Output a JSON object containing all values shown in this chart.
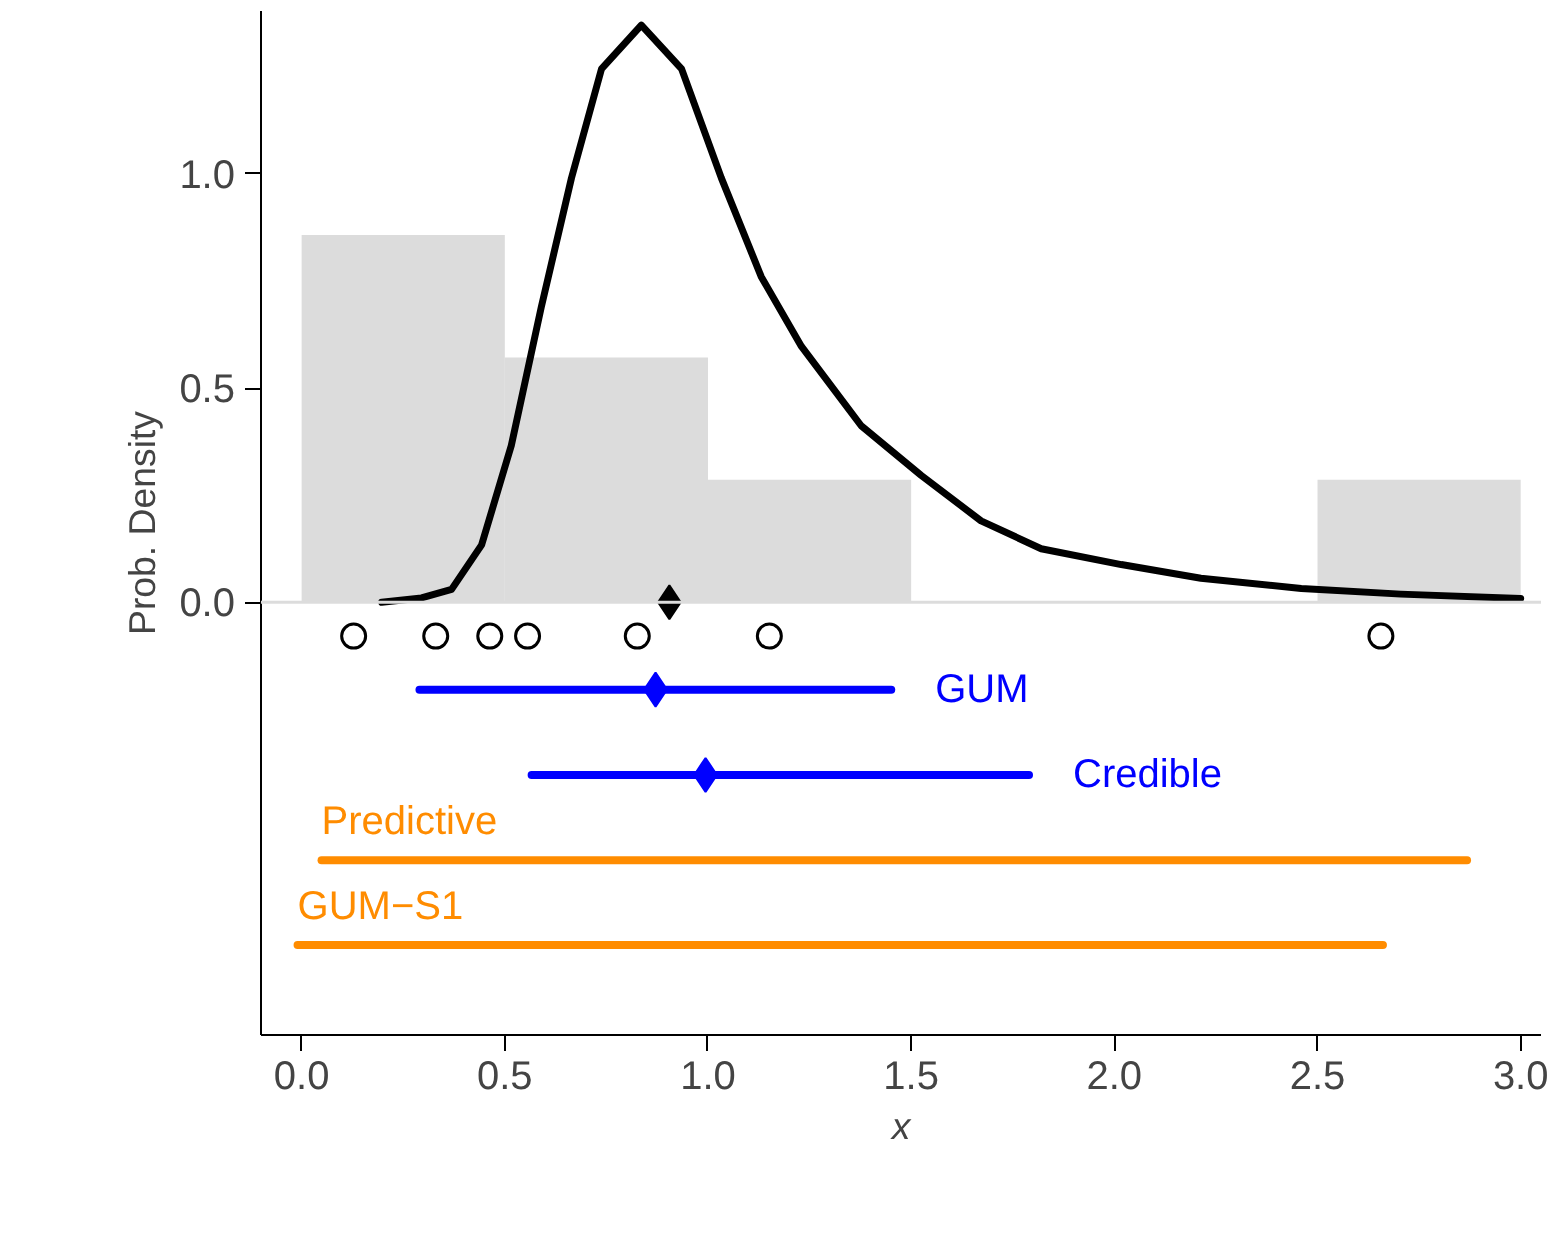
{
  "chart_data": {
    "type": "histogram",
    "xlabel": "x",
    "ylabel": "Prob. Density",
    "bins": [
      0,
      0.5,
      1.0,
      1.5,
      2.0,
      2.5,
      3.0
    ],
    "values": [
      0.857,
      0.571,
      0.286,
      0,
      0,
      0.286
    ],
    "color": "#dcdcdc",
    "xlim": [
      -0.1,
      3.05
    ],
    "ylim": [
      -1.01,
      1.38
    ],
    "xticks": [
      {
        "value": 0,
        "label": "0.0"
      },
      0.5,
      {
        "value": 1,
        "label": "1.0"
      },
      1.5,
      {
        "value": 2,
        "label": "2.0"
      },
      2.5,
      {
        "value": 3,
        "label": "3.0"
      }
    ],
    "yticks": [
      {
        "value": 0,
        "label": "0.0"
      },
      0.5,
      {
        "value": 1,
        "label": "1.0"
      }
    ],
    "grid": false,
    "ref_lines": [
      {
        "axis": "y",
        "value": 0,
        "color": "#dcdcdc"
      }
    ],
    "series": [
      {
        "type": "line",
        "color": "#000000",
        "marker": "none",
        "x": [
          0.197,
          0.295,
          0.369,
          0.443,
          0.516,
          0.59,
          0.664,
          0.738,
          0.836,
          0.935,
          1.033,
          1.131,
          1.23,
          1.377,
          1.525,
          1.672,
          1.82,
          2.017,
          2.213,
          2.46,
          2.705,
          3.0
        ],
        "values": [
          0.0,
          0.01,
          0.03,
          0.134,
          0.366,
          0.69,
          0.99,
          1.245,
          1.347,
          1.245,
          0.99,
          0.76,
          0.597,
          0.412,
          0.296,
          0.19,
          0.125,
          0.088,
          0.056,
          0.032,
          0.019,
          0.009
        ]
      },
      {
        "type": "scatter",
        "color": "#000000",
        "marker": "circle",
        "x": [
          0.128,
          0.33,
          0.463,
          0.556,
          0.826,
          1.151,
          2.656
        ],
        "values": [
          -0.079,
          -0.079,
          -0.079,
          -0.079,
          -0.079,
          -0.079,
          -0.079
        ]
      },
      {
        "type": "scatter",
        "color": "#000000",
        "marker": "diamond",
        "x": [
          0.905
        ],
        "values": [
          0
        ]
      },
      {
        "type": "line",
        "name": "GUM",
        "color": "#0000ff",
        "marker": "none",
        "x": [
          0.29,
          1.451
        ],
        "values": [
          -0.204,
          -0.204
        ]
      },
      {
        "type": "scatter",
        "color": "#0000ff",
        "marker": "diamond",
        "x": [
          0.871
        ],
        "values": [
          -0.204
        ]
      },
      {
        "type": "line",
        "name": "Credible",
        "color": "#0000ff",
        "marker": "none",
        "x": [
          0.566,
          1.79
        ],
        "values": [
          -0.403,
          -0.403
        ]
      },
      {
        "type": "scatter",
        "color": "#0000ff",
        "marker": "diamond",
        "x": [
          0.994
        ],
        "values": [
          -0.403
        ]
      },
      {
        "type": "line",
        "name": "Predictive",
        "color": "#ff8c00",
        "marker": "none",
        "x": [
          0.049,
          2.868
        ],
        "values": [
          -0.602,
          -0.602
        ]
      },
      {
        "type": "line",
        "name": "GUM−S1",
        "color": "#ff8c00",
        "marker": "none",
        "x": [
          -0.01,
          2.661
        ],
        "values": [
          -0.8,
          -0.8
        ]
      }
    ]
  }
}
